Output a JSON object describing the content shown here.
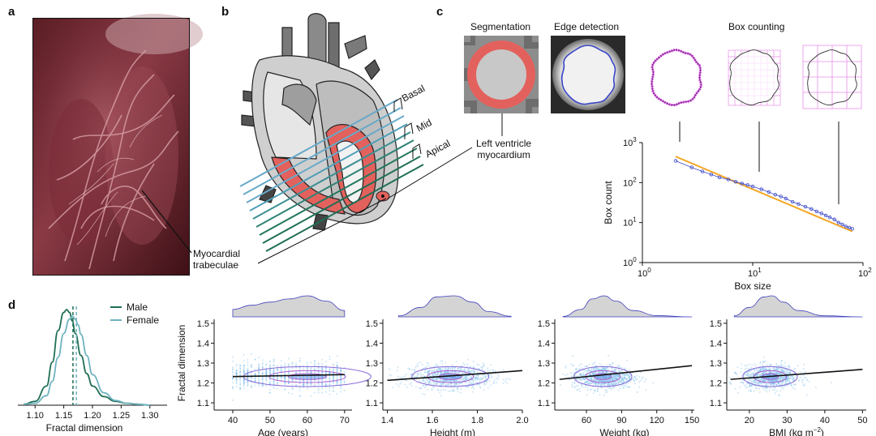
{
  "panels": {
    "a": {
      "letter": "a",
      "annotation": "Myocardial\ntrabeculae"
    },
    "b": {
      "letter": "b",
      "regions": [
        "Basal",
        "Mid",
        "Apical"
      ]
    },
    "c": {
      "letter": "c",
      "step_titles": [
        "Segmentation",
        "Edge detection",
        "Box counting"
      ],
      "annotation": "Left ventricle\nmyocardium"
    },
    "d": {
      "letter": "d"
    }
  },
  "colors": {
    "male": "#1f6e55",
    "female": "#6fb3c0",
    "myocardium": "#e3615d",
    "fit_orange": "#f5a623",
    "points_blue": "#3a47c8",
    "regression": "#111111",
    "density_fill": "#d4d4d4",
    "density_line": "#4040c0",
    "boxes": "#d63bd6",
    "scatter": "#6fb6e8"
  },
  "chart_data": [
    {
      "id": "box-counting-loglog",
      "type": "scatter",
      "xlabel": "Box size",
      "ylabel": "Box count",
      "x_scale": "log",
      "y_scale": "log",
      "xlim": [
        1,
        100
      ],
      "ylim": [
        1,
        1000
      ],
      "x_ticks": [
        1,
        10,
        100
      ],
      "x_tick_labels": [
        "10",
        "10",
        "10"
      ],
      "x_tick_exponents": [
        "0",
        "1",
        "2"
      ],
      "y_ticks": [
        1,
        10,
        100,
        1000
      ],
      "y_tick_labels": [
        "10",
        "10",
        "10",
        "10"
      ],
      "y_tick_exponents": [
        "0",
        "1",
        "2",
        "3"
      ],
      "points": {
        "x": [
          2,
          2.8,
          3.5,
          4.2,
          5,
          6,
          7,
          8,
          9,
          10,
          12,
          14,
          16,
          18,
          20,
          23,
          26,
          30,
          34,
          38,
          42,
          46,
          50,
          55,
          60,
          65,
          70,
          75,
          80
        ],
        "y": [
          350,
          240,
          190,
          160,
          135,
          120,
          105,
          95,
          87,
          80,
          68,
          58,
          50,
          45,
          40,
          33,
          29,
          25,
          22,
          19,
          17,
          15,
          13.5,
          12,
          10,
          9,
          8,
          7.5,
          7
        ]
      },
      "fit": {
        "x": [
          2,
          80
        ],
        "y": [
          450,
          6
        ]
      }
    },
    {
      "id": "fd-density",
      "type": "line",
      "xlabel": "Fractal dimension",
      "xlim": [
        1.07,
        1.33
      ],
      "x_ticks": [
        1.1,
        1.15,
        1.2,
        1.25,
        1.3
      ],
      "x_tick_labels": [
        "1.10",
        "1.15",
        "1.20",
        "1.25",
        "1.30"
      ],
      "series": [
        {
          "name": "Male",
          "x": [
            1.08,
            1.1,
            1.12,
            1.13,
            1.14,
            1.15,
            1.155,
            1.16,
            1.165,
            1.17,
            1.18,
            1.19,
            1.2,
            1.22,
            1.24,
            1.26,
            1.28,
            1.3
          ],
          "y": [
            0.01,
            0.04,
            0.2,
            0.45,
            0.78,
            0.97,
            1.0,
            0.97,
            0.88,
            0.75,
            0.52,
            0.33,
            0.2,
            0.09,
            0.04,
            0.02,
            0.01,
            0.0
          ],
          "mean": 1.166
        },
        {
          "name": "Female",
          "x": [
            1.08,
            1.1,
            1.12,
            1.13,
            1.14,
            1.15,
            1.16,
            1.165,
            1.17,
            1.175,
            1.18,
            1.19,
            1.2,
            1.22,
            1.24,
            1.26,
            1.28,
            1.3
          ],
          "y": [
            0.01,
            0.02,
            0.1,
            0.25,
            0.5,
            0.75,
            0.9,
            0.93,
            0.9,
            0.84,
            0.74,
            0.52,
            0.32,
            0.13,
            0.05,
            0.02,
            0.01,
            0.0
          ],
          "mean": 1.172
        }
      ]
    },
    {
      "id": "fd-vs-age",
      "type": "scatter",
      "xlabel": "Age (years)",
      "ylabel": "Fractal dimension",
      "xlim": [
        35,
        72
      ],
      "ylim": [
        1.08,
        1.52
      ],
      "x_ticks": [
        40,
        50,
        60,
        70
      ],
      "y_ticks": [
        1.1,
        1.2,
        1.3,
        1.4,
        1.5
      ],
      "y_tick_labels": [
        "1.1",
        "1.2",
        "1.3",
        "1.4",
        "1.5"
      ],
      "regression": {
        "x": [
          40,
          70
        ],
        "y": [
          1.232,
          1.242
        ]
      },
      "x_discrete": true,
      "density_top": {
        "x": [
          40,
          45,
          50,
          55,
          60,
          65,
          70
        ],
        "y": [
          0.35,
          0.55,
          0.7,
          0.85,
          1.0,
          0.75,
          0.3
        ]
      }
    },
    {
      "id": "fd-vs-height",
      "type": "scatter",
      "xlabel": "Height (m)",
      "xlim": [
        1.38,
        2.0
      ],
      "ylim": [
        1.08,
        1.52
      ],
      "x_ticks": [
        1.4,
        1.6,
        1.8,
        2.0
      ],
      "x_tick_labels": [
        "1.4",
        "1.6",
        "1.8",
        "2.0"
      ],
      "y_ticks": [
        1.1,
        1.2,
        1.3,
        1.4,
        1.5
      ],
      "y_tick_labels": [
        "1.1",
        "1.2",
        "1.3",
        "1.4",
        "1.5"
      ],
      "regression": {
        "x": [
          1.4,
          2.0
        ],
        "y": [
          1.213,
          1.262
        ]
      },
      "center": [
        1.68,
        1.23
      ],
      "spread": [
        0.09,
        0.03
      ],
      "density_top": {
        "x": [
          1.45,
          1.55,
          1.62,
          1.7,
          1.78,
          1.85,
          1.95
        ],
        "y": [
          0.05,
          0.45,
          0.95,
          1.0,
          0.7,
          0.25,
          0.03
        ]
      }
    },
    {
      "id": "fd-vs-weight",
      "type": "scatter",
      "xlabel": "Weight (kg)",
      "xlim": [
        33,
        152
      ],
      "ylim": [
        1.08,
        1.52
      ],
      "x_ticks": [
        60,
        90,
        120,
        150
      ],
      "y_ticks": [
        1.1,
        1.2,
        1.3,
        1.4,
        1.5
      ],
      "y_tick_labels": [
        "1.1",
        "1.2",
        "1.3",
        "1.4",
        "1.5"
      ],
      "regression": {
        "x": [
          37,
          150
        ],
        "y": [
          1.218,
          1.287
        ]
      },
      "center": [
        74,
        1.23
      ],
      "spread": [
        13,
        0.03
      ],
      "density_top": {
        "x": [
          40,
          55,
          65,
          75,
          85,
          100,
          120,
          150
        ],
        "y": [
          0.02,
          0.35,
          0.85,
          1.0,
          0.75,
          0.3,
          0.06,
          0.0
        ]
      }
    },
    {
      "id": "fd-vs-bmi",
      "type": "scatter",
      "xlabel": "BMI (kg m",
      "xlabel_sup": "−2",
      "xlabel_suffix": ")",
      "xlim": [
        14,
        51
      ],
      "ylim": [
        1.08,
        1.52
      ],
      "x_ticks": [
        20,
        30,
        40,
        50
      ],
      "y_ticks": [
        1.1,
        1.2,
        1.3,
        1.4,
        1.5
      ],
      "y_tick_labels": [
        "1.1",
        "1.2",
        "1.3",
        "1.4",
        "1.5"
      ],
      "regression": {
        "x": [
          15,
          50
        ],
        "y": [
          1.218,
          1.268
        ]
      },
      "center": [
        25.5,
        1.23
      ],
      "spread": [
        3.8,
        0.03
      ],
      "density_top": {
        "x": [
          16,
          20,
          24,
          26,
          29,
          33,
          40,
          50
        ],
        "y": [
          0.05,
          0.45,
          0.95,
          1.0,
          0.7,
          0.3,
          0.05,
          0.0
        ]
      }
    }
  ]
}
